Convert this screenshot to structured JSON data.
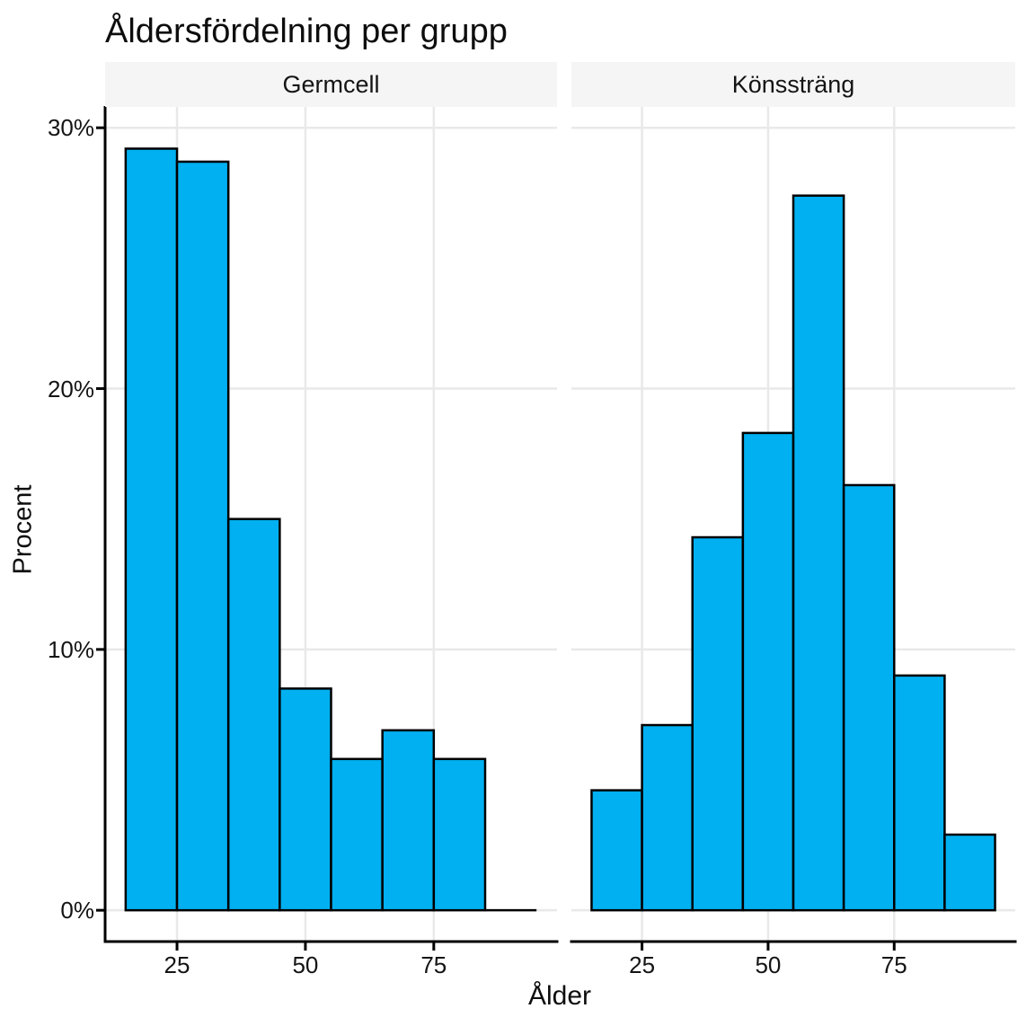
{
  "title": "Åldersfördelning per grupp",
  "chart_data": {
    "type": "bar",
    "subtype": "faceted-histogram",
    "title": "Åldersfördelning per grupp",
    "xlabel": "Ålder",
    "ylabel": "Procent",
    "grid": true,
    "legend": false,
    "x": {
      "label": "Ålder",
      "min": 11,
      "max": 99,
      "ticks": [
        25,
        50,
        75
      ],
      "tick_labels": [
        "25",
        "50",
        "75"
      ]
    },
    "y": {
      "label": "Procent",
      "min": -1.2,
      "max": 30.8,
      "ticks": [
        0,
        10,
        20,
        30
      ],
      "tick_labels": [
        "0%",
        "10%",
        "20%",
        "30%"
      ]
    },
    "bin_start": 15,
    "bin_width": 10,
    "facets": [
      {
        "label": "Germcell",
        "bin_edges": [
          15,
          25,
          35,
          45,
          55,
          65,
          75,
          85,
          95
        ],
        "percent": [
          29.2,
          28.7,
          15.0,
          8.5,
          5.8,
          6.9,
          5.8,
          0.0
        ]
      },
      {
        "label": "Könssträng",
        "bin_edges": [
          15,
          25,
          35,
          45,
          55,
          65,
          75,
          85,
          95
        ],
        "percent": [
          4.6,
          7.1,
          14.3,
          18.3,
          27.4,
          16.3,
          9.0,
          2.9
        ]
      }
    ],
    "colors": {
      "bar_fill": "#00B0F0",
      "bar_stroke": "#000000",
      "grid": "#e9e9e9",
      "strip_background": "#f5f5f5",
      "axis": "#000000",
      "text": "#141414"
    }
  }
}
